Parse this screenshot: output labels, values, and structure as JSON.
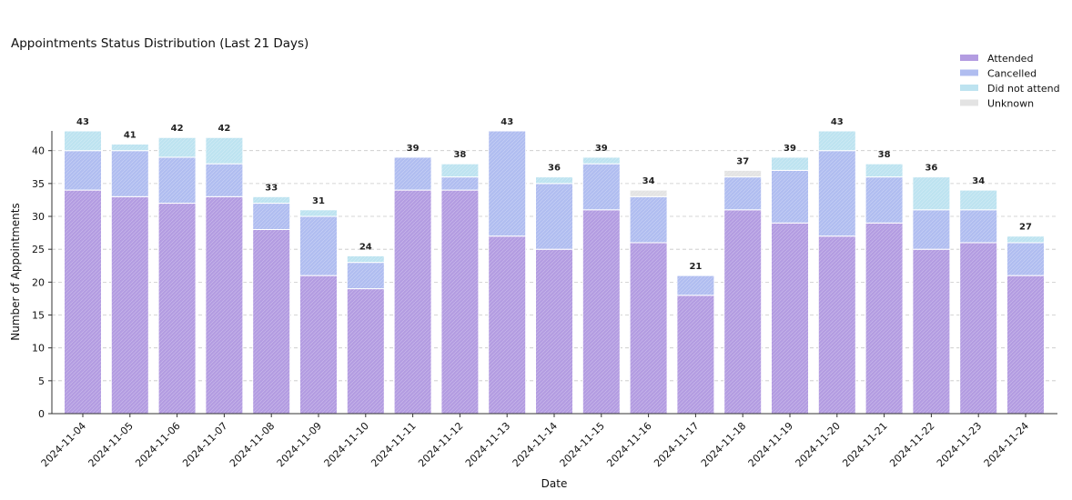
{
  "chart_data": {
    "type": "bar",
    "stacked": true,
    "title": "Appointments Status Distribution (Last 21 Days)",
    "xlabel": "Date",
    "ylabel": "Number of Appointments",
    "ylim": [
      0,
      43
    ],
    "yticks": [
      0,
      5,
      10,
      15,
      20,
      25,
      30,
      35,
      40
    ],
    "grid": "horizontal-dashed",
    "legend_position": "top-right",
    "categories": [
      "2024-11-04",
      "2024-11-05",
      "2024-11-06",
      "2024-11-07",
      "2024-11-08",
      "2024-11-09",
      "2024-11-10",
      "2024-11-11",
      "2024-11-12",
      "2024-11-13",
      "2024-11-14",
      "2024-11-15",
      "2024-11-16",
      "2024-11-17",
      "2024-11-18",
      "2024-11-19",
      "2024-11-20",
      "2024-11-21",
      "2024-11-22",
      "2024-11-23",
      "2024-11-24"
    ],
    "series": [
      {
        "name": "Attended",
        "color": "#b39ce1",
        "values": [
          34,
          33,
          32,
          33,
          28,
          21,
          19,
          34,
          34,
          27,
          25,
          31,
          26,
          18,
          31,
          29,
          27,
          29,
          25,
          26,
          21
        ]
      },
      {
        "name": "Cancelled",
        "color": "#b0bdf0",
        "values": [
          6,
          7,
          7,
          5,
          4,
          9,
          4,
          5,
          2,
          16,
          10,
          7,
          7,
          3,
          5,
          8,
          13,
          7,
          6,
          5,
          5
        ]
      },
      {
        "name": "Did not attend",
        "color": "#bde3f0",
        "values": [
          3,
          1,
          3,
          4,
          1,
          1,
          1,
          0,
          2,
          0,
          1,
          1,
          0,
          0,
          0,
          2,
          3,
          2,
          5,
          3,
          1
        ]
      },
      {
        "name": "Unknown",
        "color": "#e3e3e3",
        "values": [
          0,
          0,
          0,
          0,
          0,
          0,
          0,
          0,
          0,
          0,
          0,
          0,
          1,
          0,
          1,
          0,
          0,
          0,
          0,
          0,
          0
        ]
      }
    ],
    "totals": [
      43,
      41,
      42,
      42,
      33,
      31,
      24,
      39,
      38,
      43,
      36,
      39,
      34,
      21,
      37,
      39,
      43,
      38,
      36,
      34,
      27
    ]
  }
}
